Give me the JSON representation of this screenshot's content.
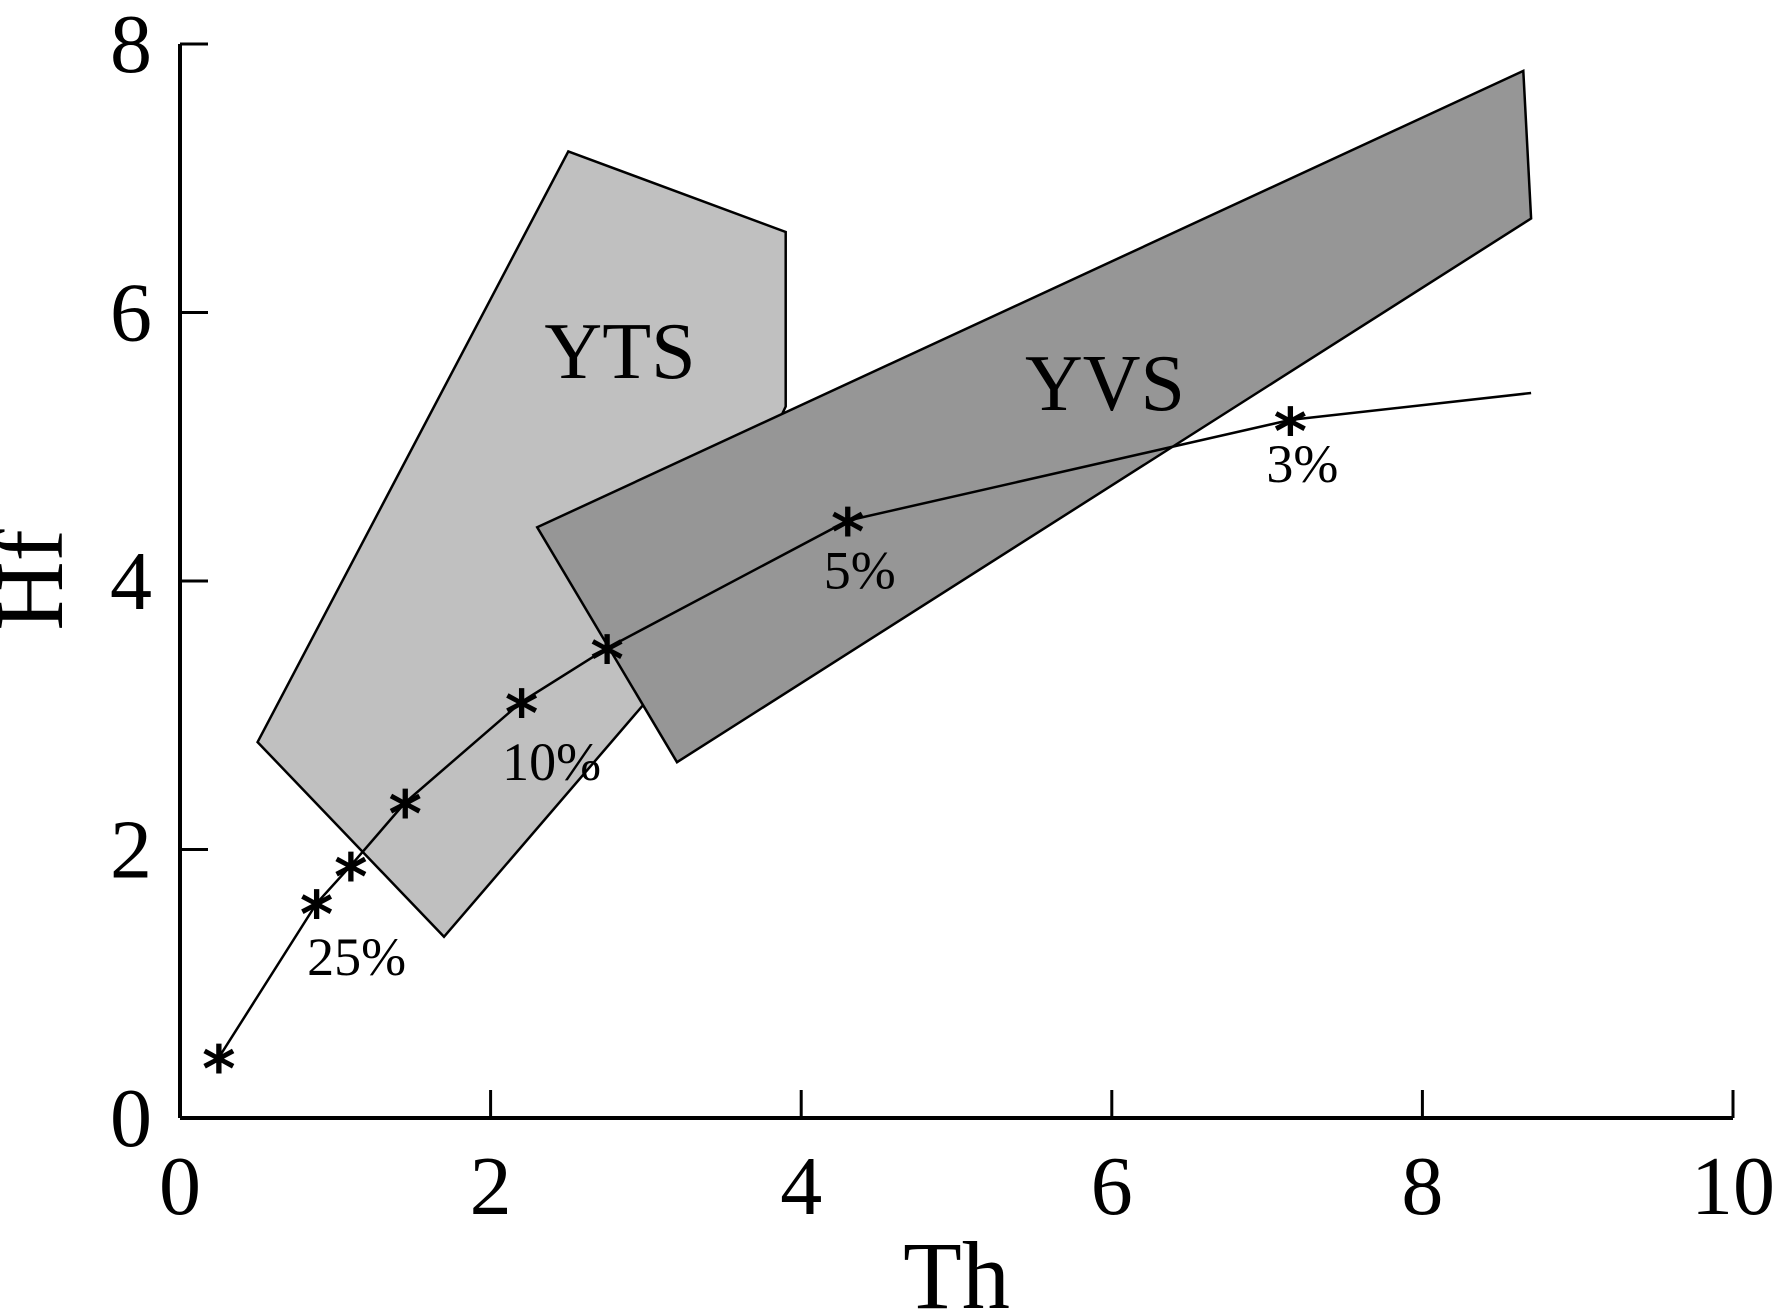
{
  "chart_data": {
    "type": "line",
    "xlabel": "Th",
    "ylabel": "Hf",
    "xlim": [
      0,
      10
    ],
    "ylim": [
      0,
      8
    ],
    "x_ticks": [
      "0",
      "2",
      "4",
      "6",
      "8",
      "10"
    ],
    "y_ticks": [
      "0",
      "2",
      "4",
      "6",
      "8"
    ],
    "grid": false,
    "regions": [
      {
        "label": "YTS",
        "color": "#c0c0c0",
        "points": [
          [
            0.5,
            2.8
          ],
          [
            2.5,
            7.2
          ],
          [
            3.9,
            6.6
          ],
          [
            3.9,
            5.3
          ],
          [
            3.0,
            3.1
          ],
          [
            1.7,
            1.35
          ]
        ]
      },
      {
        "label": "YVS",
        "color": "#969696",
        "points": [
          [
            2.3,
            4.4
          ],
          [
            8.65,
            7.8
          ],
          [
            8.7,
            6.7
          ],
          [
            3.2,
            2.65
          ]
        ]
      }
    ],
    "series": [
      {
        "x": [
          0.25,
          0.88,
          1.1,
          1.45,
          2.2,
          2.75,
          4.3,
          7.15,
          8.7
        ],
        "y": [
          0.45,
          1.6,
          1.88,
          2.35,
          3.1,
          3.5,
          4.45,
          5.2,
          5.4
        ],
        "markers": [
          true,
          true,
          true,
          true,
          true,
          true,
          true,
          true,
          false
        ]
      }
    ],
    "annotations": [
      {
        "text": "25%",
        "x": 0.9
      },
      {
        "text": "10%",
        "x": 2.2
      },
      {
        "text": "5%",
        "x": 4.3
      },
      {
        "text": "3%",
        "x": 7.15
      }
    ]
  }
}
